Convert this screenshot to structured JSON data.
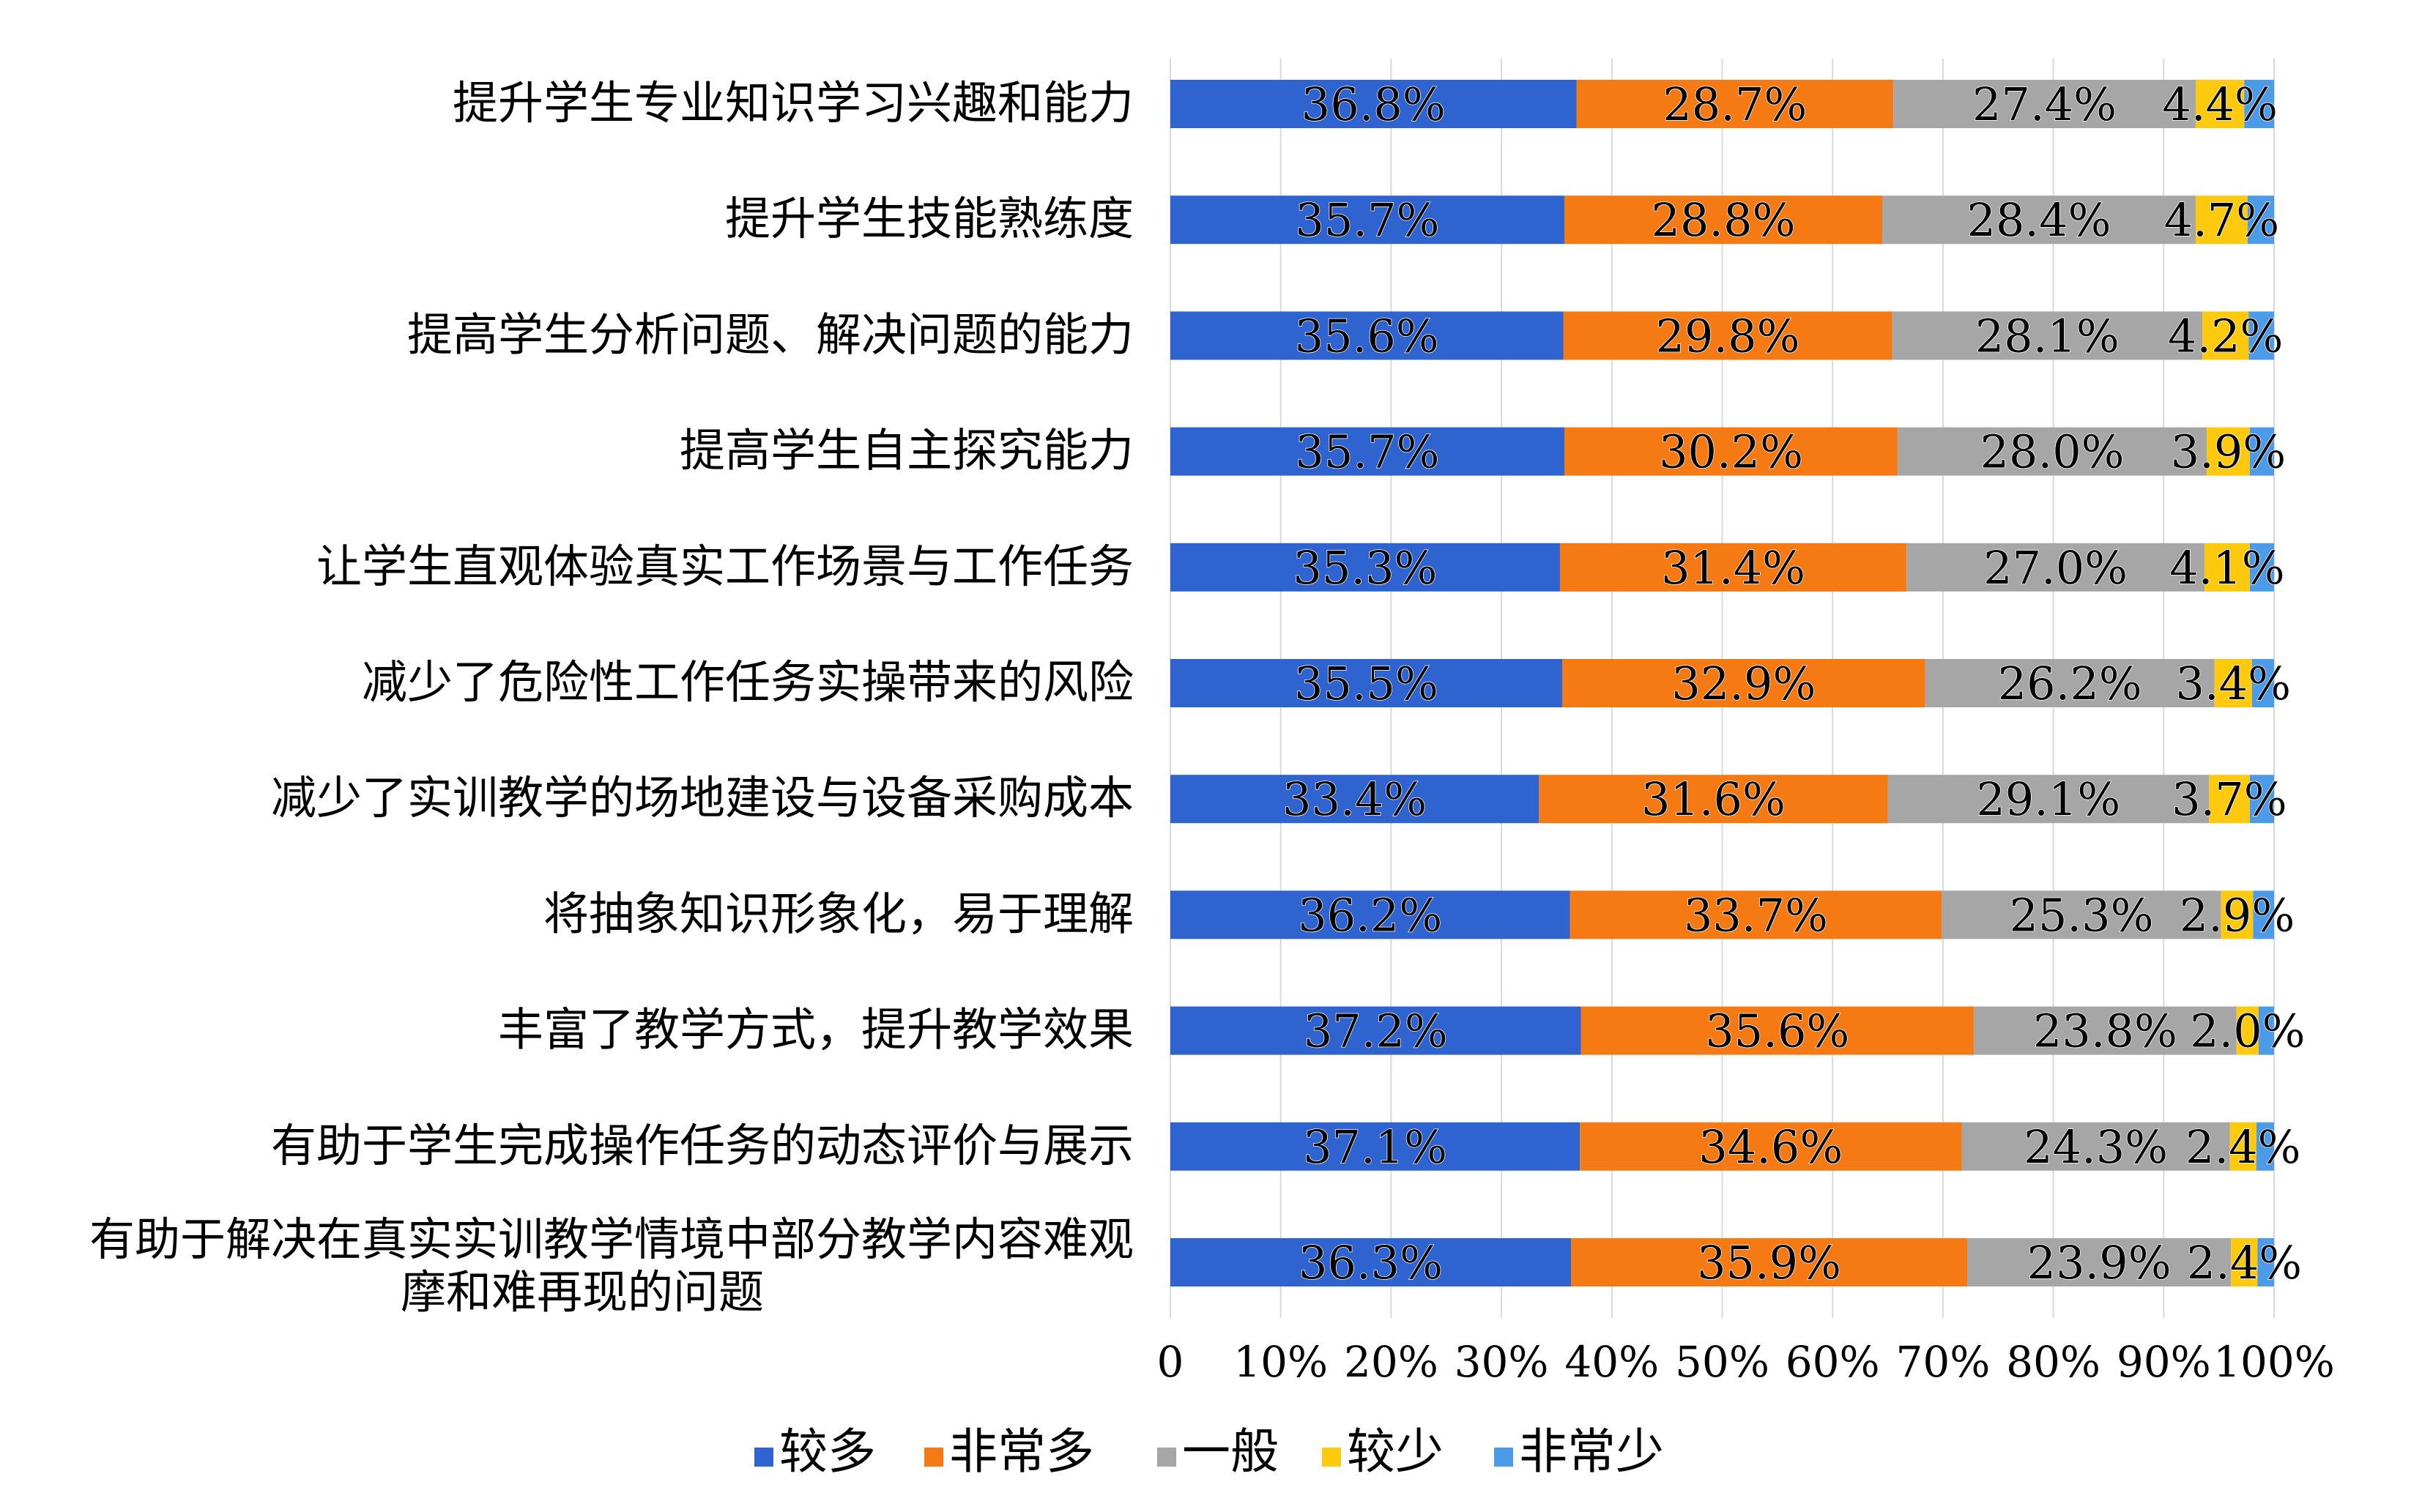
{
  "chart_data": {
    "type": "bar",
    "orientation": "horizontal",
    "stacked": true,
    "percent_stacked": true,
    "categories": [
      "提升学生专业知识学习兴趣和能力",
      "提升学生技能熟练度",
      "提高学生分析问题、解决问题的能力",
      "提高学生自主探究能力",
      "让学生直观体验真实工作场景与工作任务",
      "减少了危险性工作任务实操带来的风险",
      "减少了实训教学的场地建设与设备采购成本",
      "将抽象知识形象化，易于理解",
      "丰富了教学方式，提升教学效果",
      "有助于学生完成操作任务的动态评价与展示",
      "有助于解决在真实实训教学情境中部分教学内容难观摩和难再现的问题"
    ],
    "category_lines": [
      [
        "提升学生专业知识学习兴趣和能力"
      ],
      [
        "提升学生技能熟练度"
      ],
      [
        "提高学生分析问题、解决问题的能力"
      ],
      [
        "提高学生自主探究能力"
      ],
      [
        "让学生直观体验真实工作场景与工作任务"
      ],
      [
        "减少了危险性工作任务实操带来的风险"
      ],
      [
        "减少了实训教学的场地建设与设备采购成本"
      ],
      [
        "将抽象知识形象化，易于理解"
      ],
      [
        "丰富了教学方式，提升教学效果"
      ],
      [
        "有助于学生完成操作任务的动态评价与展示"
      ],
      [
        "有助于解决在真实实训教学情境中部分教学内容难观",
        "摩和难再现的问题"
      ]
    ],
    "series": [
      {
        "name": "较多",
        "color": "#2E63D0",
        "values": [
          36.8,
          35.7,
          35.6,
          35.7,
          35.3,
          35.5,
          33.4,
          36.2,
          37.2,
          37.1,
          36.3
        ],
        "show_labels": true
      },
      {
        "name": "非常多",
        "color": "#F57A14",
        "values": [
          28.7,
          28.8,
          29.8,
          30.2,
          31.4,
          32.9,
          31.6,
          33.7,
          35.6,
          34.6,
          35.9
        ],
        "show_labels": true
      },
      {
        "name": "一般",
        "color": "#A6A6A6",
        "values": [
          27.4,
          28.4,
          28.1,
          28.0,
          27.0,
          26.2,
          29.1,
          25.3,
          23.8,
          24.3,
          23.9
        ],
        "show_labels": true
      },
      {
        "name": "较少",
        "color": "#FFC90E",
        "values": [
          4.4,
          4.7,
          4.2,
          3.9,
          4.1,
          3.4,
          3.7,
          2.9,
          2.0,
          2.4,
          2.4
        ],
        "show_labels": true
      },
      {
        "name": "非常少",
        "color": "#4C9BE8",
        "values": [
          2.7,
          2.4,
          2.3,
          2.2,
          2.2,
          2.0,
          2.2,
          1.9,
          1.4,
          1.6,
          1.5
        ],
        "show_labels": false
      }
    ],
    "value_suffix": "%",
    "xlim": [
      0,
      100
    ],
    "xticks": [
      "0",
      "10%",
      "20%",
      "30%",
      "40%",
      "50%",
      "60%",
      "70%",
      "80%",
      "90%",
      "100%"
    ],
    "grid": "vertical",
    "legend": "bottom-center"
  }
}
